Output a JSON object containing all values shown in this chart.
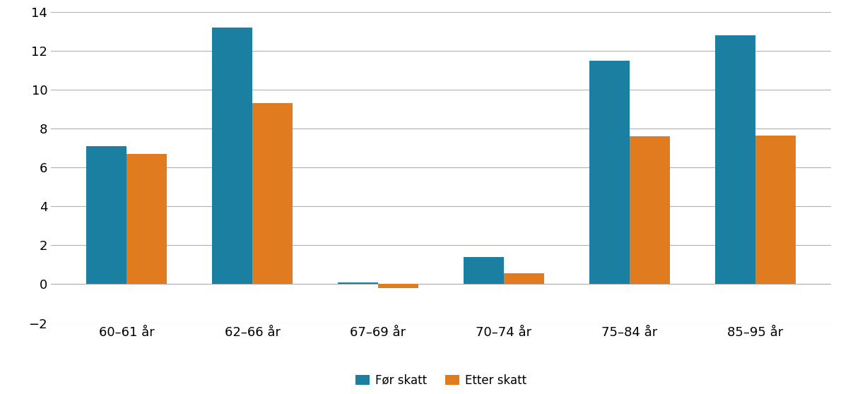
{
  "categories": [
    "60–61 år",
    "62–66 år",
    "67–69 år",
    "70–74 år",
    "75–84 år",
    "85–95 år"
  ],
  "for_skatt": [
    7.1,
    13.2,
    0.1,
    1.4,
    11.5,
    12.8
  ],
  "etter_skatt": [
    6.7,
    9.3,
    -0.2,
    0.55,
    7.6,
    7.65
  ],
  "color_for": "#1a7fa0",
  "color_etter": "#e07b20",
  "ylim": [
    -2,
    14
  ],
  "yticks": [
    -2,
    0,
    2,
    4,
    6,
    8,
    10,
    12,
    14
  ],
  "legend_for": "Før skatt",
  "legend_etter": "Etter skatt",
  "bar_width": 0.32,
  "background_color": "#ffffff",
  "grid_color": "#b0b0b0",
  "tick_fontsize": 13,
  "legend_fontsize": 12
}
